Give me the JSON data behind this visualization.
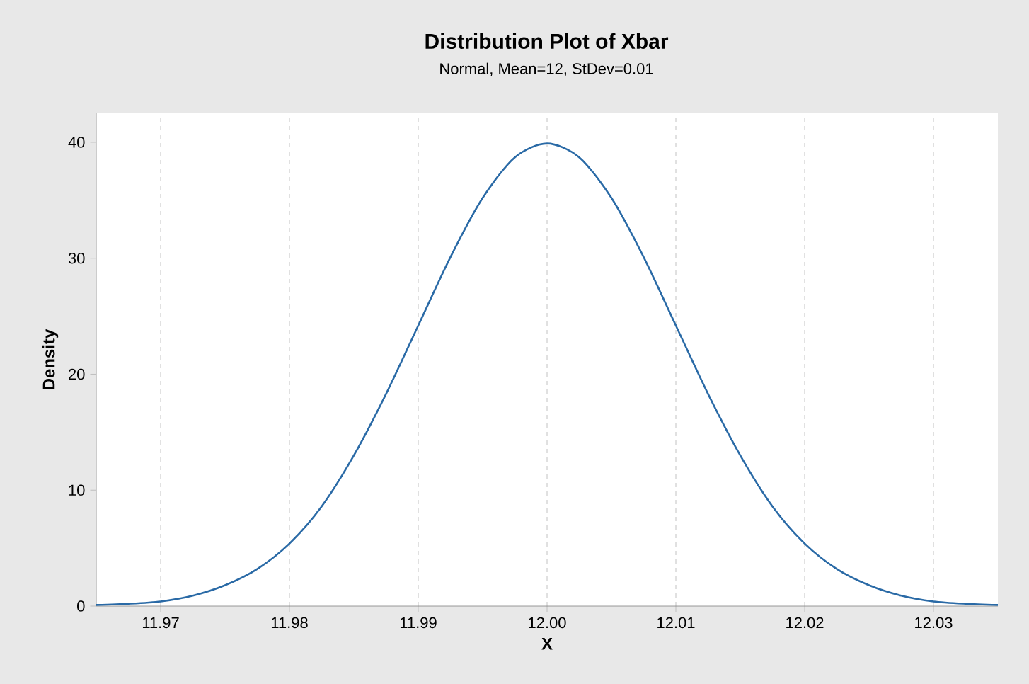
{
  "chart_data": {
    "type": "line",
    "title": "Distribution Plot of Xbar",
    "subtitle": "Normal, Mean=12, StDev=0.01",
    "xlabel": "X",
    "ylabel": "Density",
    "x": [
      11.965,
      11.9675,
      11.97,
      11.9725,
      11.975,
      11.9775,
      11.98,
      11.9825,
      11.985,
      11.9875,
      11.99,
      11.9925,
      11.995,
      11.9975,
      12.0,
      12.0025,
      12.005,
      12.0075,
      12.01,
      12.0125,
      12.015,
      12.0175,
      12.02,
      12.0225,
      12.025,
      12.0275,
      12.03,
      12.0325,
      12.035
    ],
    "series": [
      {
        "color": "#2a6aa6",
        "values": [
          0.1,
          0.2,
          0.4,
          0.9,
          1.8,
          3.2,
          5.4,
          8.6,
          13,
          18.3,
          24.2,
          30.1,
          35.2,
          38.7,
          39.9,
          38.7,
          35.2,
          30.1,
          24.2,
          18.3,
          13,
          8.6,
          5.4,
          3.2,
          1.8,
          0.9,
          0.4,
          0.2,
          0.1
        ]
      }
    ],
    "xlim": [
      11.965,
      12.035
    ],
    "ylim": [
      0,
      42.5
    ],
    "xticks": [
      {
        "value": 11.97,
        "label": "11.97"
      },
      {
        "value": 11.98,
        "label": "11.98"
      },
      {
        "value": 11.99,
        "label": "11.99"
      },
      {
        "value": 12.0,
        "label": "12.00"
      },
      {
        "value": 12.01,
        "label": "12.01"
      },
      {
        "value": 12.02,
        "label": "12.02"
      },
      {
        "value": 12.03,
        "label": "12.03"
      }
    ],
    "yticks": [
      0,
      10,
      20,
      30,
      40
    ],
    "grid": "x",
    "line_style": "solid",
    "marker": "none"
  }
}
